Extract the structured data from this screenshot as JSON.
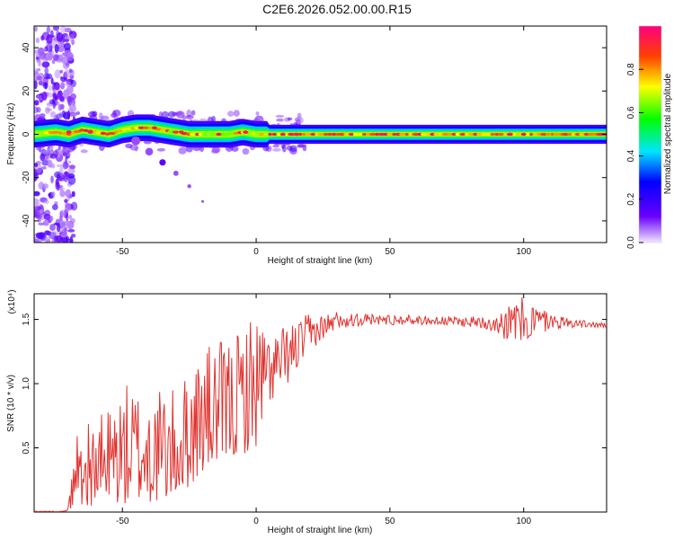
{
  "title": "C2E6.2026.052.00.00.R15",
  "chart_data": [
    {
      "type": "heatmap",
      "name": "spectrogram",
      "xlabel": "Height of straight line (km)",
      "ylabel": "Frequency (Hz)",
      "xlim": [
        -83,
        131
      ],
      "ylim": [
        -50,
        50
      ],
      "xticks": [
        -50,
        0,
        50,
        100
      ],
      "yticks": [
        -40,
        -20,
        0,
        20,
        40
      ],
      "colorbar": {
        "label": "Normalized spectral amplitude",
        "range": [
          0,
          1
        ],
        "ticks": [
          0.0,
          0.2,
          0.4,
          0.6,
          0.8
        ],
        "tick_labels": [
          "0.0",
          "0.2",
          "0.4",
          "0.6",
          "0.8"
        ]
      },
      "series": [
        {
          "name": "dominant frequency ridge",
          "x": [
            -83,
            -75,
            -70,
            -65,
            -60,
            -55,
            -50,
            -45,
            -40,
            -35,
            -30,
            -25,
            -20,
            -15,
            -10,
            -5,
            0,
            5,
            10,
            20,
            40,
            60,
            80,
            95,
            100,
            110,
            131
          ],
          "y": [
            0,
            1,
            0,
            2,
            1,
            0,
            2,
            3,
            3,
            2,
            1,
            0,
            0,
            0,
            0,
            1,
            0,
            0,
            0,
            0,
            0,
            0,
            0,
            0,
            0,
            0,
            0
          ]
        },
        {
          "name": "descending branch",
          "x": [
            -45,
            -40,
            -35,
            -30,
            -25,
            -20
          ],
          "y": [
            -3,
            -8,
            -13,
            -18,
            -24,
            -31
          ]
        }
      ]
    },
    {
      "type": "line",
      "name": "snr",
      "xlabel": "Height of straight line (km)",
      "ylabel": "SNR (10 * v/v)",
      "multiplier": "(x10⁴)",
      "xlim": [
        -83,
        131
      ],
      "ylim": [
        0,
        1.7
      ],
      "xticks": [
        -50,
        0,
        50,
        100
      ],
      "yticks": [
        0.5,
        1.0,
        1.5
      ],
      "ytick_labels": [
        "0.5",
        "1.0",
        "1.5"
      ],
      "envelope": {
        "x": [
          -83,
          -72,
          -70,
          -67,
          -60,
          -50,
          -40,
          -30,
          -20,
          -10,
          0,
          5,
          10,
          15,
          20,
          25,
          30,
          40,
          60,
          80,
          90,
          95,
          100,
          110,
          120,
          131
        ],
        "low": [
          0,
          0,
          0.02,
          0.05,
          0.05,
          0.05,
          0.05,
          0.1,
          0.3,
          0.4,
          0.5,
          0.85,
          0.95,
          1.1,
          1.25,
          1.35,
          1.43,
          1.45,
          1.46,
          1.44,
          1.4,
          1.3,
          1.3,
          1.42,
          1.44,
          1.43
        ],
        "high": [
          0,
          0,
          0.08,
          0.7,
          0.7,
          1.0,
          1.0,
          0.95,
          1.3,
          1.35,
          1.6,
          1.4,
          1.45,
          1.5,
          1.55,
          1.55,
          1.57,
          1.55,
          1.53,
          1.52,
          1.56,
          1.62,
          1.68,
          1.55,
          1.5,
          1.47
        ]
      }
    }
  ]
}
